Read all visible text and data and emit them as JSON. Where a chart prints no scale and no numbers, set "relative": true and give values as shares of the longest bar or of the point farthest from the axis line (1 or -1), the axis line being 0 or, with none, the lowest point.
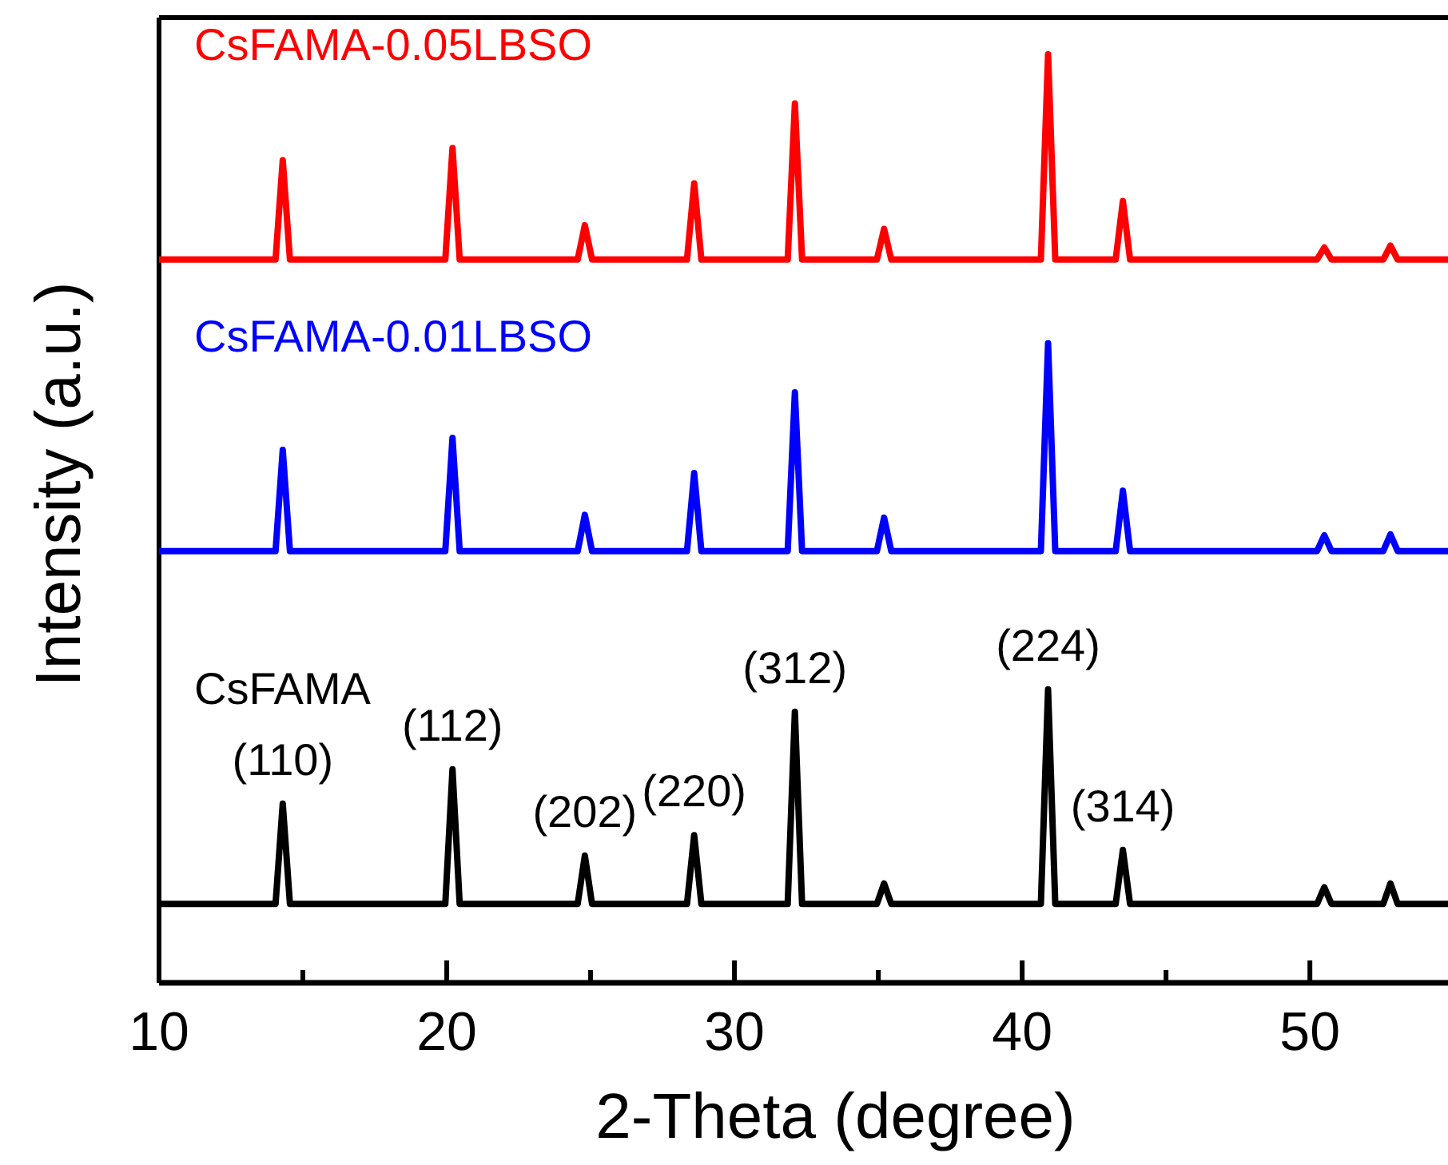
{
  "chart_data": {
    "type": "line",
    "relative": true,
    "xlabel": "2-Theta (degree)",
    "ylabel": "Intensity (a.u.)",
    "xlim": [
      10,
      54.8
    ],
    "xticks": [
      10,
      {
        "value": 15,
        "label": null
      },
      20,
      {
        "value": 25,
        "label": null
      },
      30,
      {
        "value": 35,
        "label": null
      },
      40,
      {
        "value": 45,
        "label": null
      },
      50
    ],
    "x": [
      10,
      14.05,
      14.3,
      14.55,
      19.95,
      20.2,
      20.45,
      24.55,
      24.8,
      25.05,
      28.35,
      28.6,
      28.85,
      31.85,
      32.1,
      32.35,
      34.95,
      35.2,
      35.45,
      40.65,
      40.9,
      41.15,
      43.25,
      43.5,
      43.75,
      50.25,
      50.5,
      50.75,
      52.55,
      52.8,
      53.05,
      54.8
    ],
    "series": [
      {
        "name": "CsFAMA-0.05LBSO",
        "color": "#ff0000",
        "values": [
          0.779,
          0.779,
          0.886,
          0.779,
          0.779,
          0.899,
          0.779,
          0.779,
          0.816,
          0.779,
          0.779,
          0.861,
          0.779,
          0.779,
          0.947,
          0.779,
          0.779,
          0.812,
          0.779,
          0.779,
          1.0,
          0.779,
          0.779,
          0.842,
          0.779,
          0.779,
          0.792,
          0.779,
          0.779,
          0.794,
          0.779,
          0.779
        ]
      },
      {
        "name": "CsFAMA-0.01LBSO",
        "color": "#0000ff",
        "values": [
          0.465,
          0.465,
          0.574,
          0.465,
          0.465,
          0.587,
          0.465,
          0.465,
          0.504,
          0.465,
          0.465,
          0.549,
          0.465,
          0.465,
          0.636,
          0.465,
          0.465,
          0.501,
          0.465,
          0.465,
          0.689,
          0.465,
          0.465,
          0.53,
          0.465,
          0.465,
          0.482,
          0.465,
          0.465,
          0.483,
          0.465,
          0.465
        ]
      },
      {
        "name": "CsFAMA",
        "color": "#000000",
        "values": [
          0.085,
          0.085,
          0.193,
          0.085,
          0.085,
          0.23,
          0.085,
          0.085,
          0.137,
          0.085,
          0.085,
          0.159,
          0.085,
          0.085,
          0.292,
          0.085,
          0.085,
          0.107,
          0.085,
          0.085,
          0.316,
          0.085,
          0.085,
          0.143,
          0.085,
          0.085,
          0.103,
          0.085,
          0.085,
          0.107,
          0.085,
          0.085
        ]
      }
    ],
    "annotations": [
      {
        "text": "(110)",
        "x": 14.3,
        "y": 0.193
      },
      {
        "text": "(112)",
        "x": 20.2,
        "y": 0.23
      },
      {
        "text": "(202)",
        "x": 24.8,
        "y": 0.137
      },
      {
        "text": "(220)",
        "x": 28.6,
        "y": 0.159
      },
      {
        "text": "(312)",
        "x": 32.1,
        "y": 0.292
      },
      {
        "text": "(224)",
        "x": 40.9,
        "y": 0.316
      },
      {
        "text": "(314)",
        "x": 43.5,
        "y": 0.143
      }
    ],
    "grid": false,
    "legend": false,
    "marker": "none",
    "line_style": "solid"
  }
}
